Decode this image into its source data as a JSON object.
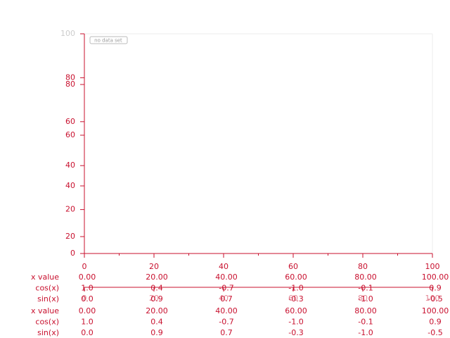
{
  "chart_data": {
    "type": "line",
    "annotation": "no data set",
    "color": "#c8102e",
    "xlim": [
      0,
      100
    ],
    "xticks": [
      0,
      20,
      40,
      60,
      80,
      100
    ],
    "ylim": [
      0,
      100
    ],
    "yticks": [
      0,
      20,
      40,
      60,
      80,
      100
    ],
    "y2lim": [
      0,
      100
    ],
    "y2ticks": [
      20,
      40,
      60,
      80
    ],
    "series": [],
    "table": {
      "rows": [
        {
          "label": "x value",
          "cells": [
            "0.00",
            "20.00",
            "40.00",
            "60.00",
            "80.00",
            "100.00"
          ]
        },
        {
          "label": "cos(x)",
          "cells": [
            "1.0",
            "0.4",
            "-0.7",
            "-1.0",
            "-0.1",
            "0.9"
          ]
        },
        {
          "label": "sin(x)",
          "cells": [
            "0.0",
            "0.9",
            "0.7",
            "-0.3",
            "-1.0",
            "-0.5"
          ]
        }
      ]
    }
  }
}
